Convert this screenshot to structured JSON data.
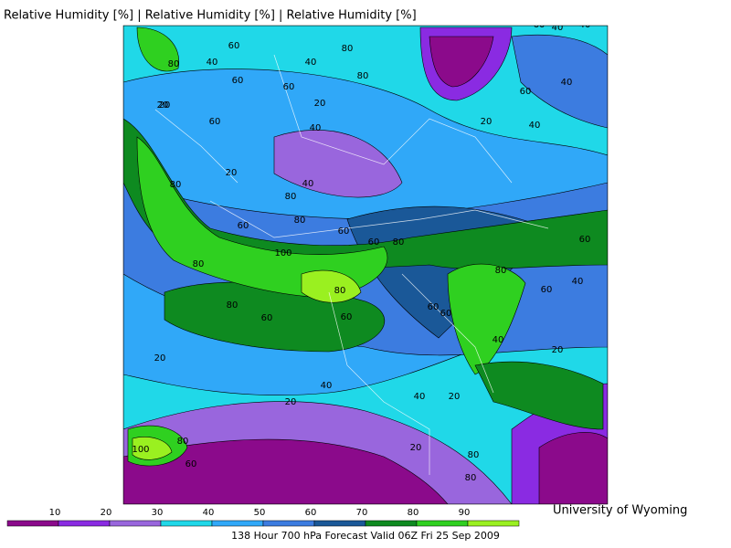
{
  "header": {
    "title": "Relative Humidity [%] | Relative Humidity [%] | Relative Humidity [%]"
  },
  "map": {
    "contour_labels": [
      60,
      40,
      40,
      60,
      80,
      80,
      20,
      40,
      60,
      40,
      60,
      80,
      20,
      60,
      20,
      40,
      40,
      40,
      20,
      60,
      20,
      40,
      80,
      80,
      80,
      60,
      60,
      60,
      80,
      100,
      80,
      80,
      80,
      60,
      60,
      60,
      80,
      60,
      40,
      20,
      20,
      40,
      40,
      20,
      20,
      100,
      80,
      80,
      60,
      60,
      20,
      40,
      80,
      60
    ]
  },
  "colorbar": {
    "colors": [
      "#8b0a8b",
      "#8a2be2",
      "#9966dd",
      "#20d8e8",
      "#30a8f8",
      "#3c7ce0",
      "#1a5898",
      "#0e8a20",
      "#2fd020",
      "#9af020"
    ],
    "ticks": [
      10,
      20,
      30,
      40,
      50,
      60,
      70,
      80,
      90
    ]
  },
  "footer": {
    "credit": "University of Wyoming",
    "caption": "138 Hour 700 hPa Forecast Valid 06Z Fri 25 Sep 2009"
  }
}
